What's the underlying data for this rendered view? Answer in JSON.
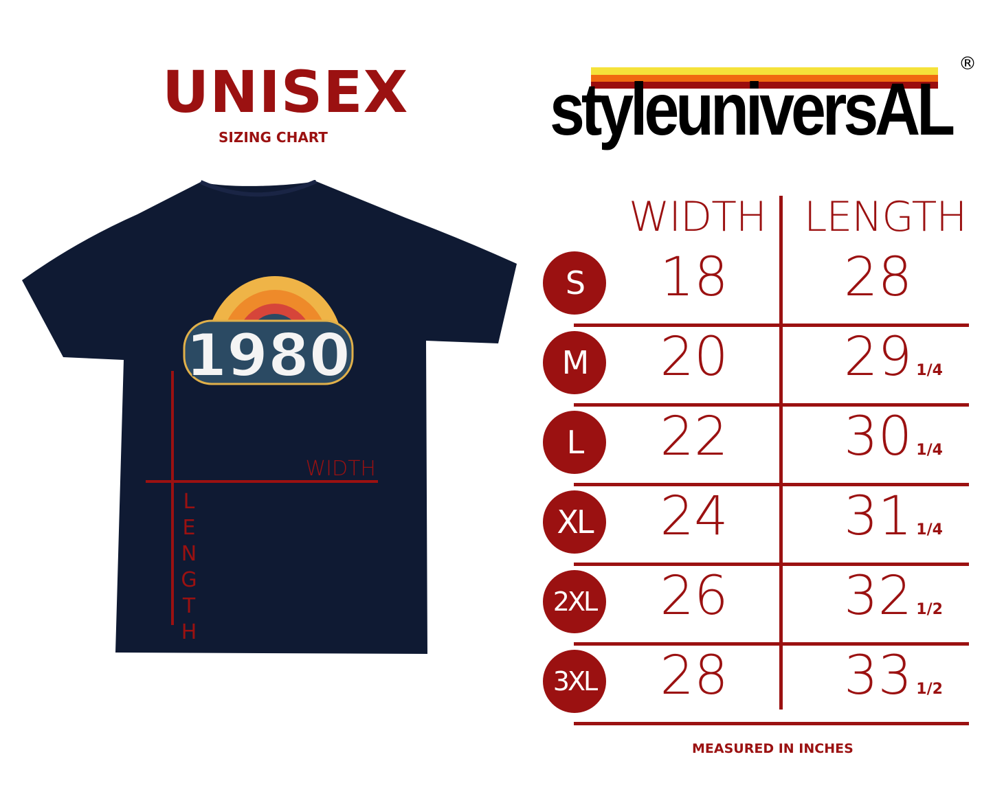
{
  "header": {
    "title": "UNISEX",
    "subtitle": "SIZING CHART"
  },
  "brand": {
    "logo_text": "styleuniversAL",
    "registered": "®"
  },
  "shirt": {
    "graphic_text": "1980",
    "width_label": "WIDTH",
    "length_label": "LENGTH",
    "color": "#0f1a33"
  },
  "table": {
    "columns": [
      "WIDTH",
      "LENGTH"
    ],
    "rows": [
      {
        "size": "S",
        "width": "18",
        "length": "28",
        "length_fraction": ""
      },
      {
        "size": "M",
        "width": "20",
        "length": "29",
        "length_fraction": "1/4"
      },
      {
        "size": "L",
        "width": "22",
        "length": "30",
        "length_fraction": "1/4"
      },
      {
        "size": "XL",
        "width": "24",
        "length": "31",
        "length_fraction": "1/4"
      },
      {
        "size": "2XL",
        "width": "26",
        "length": "32",
        "length_fraction": "1/2"
      },
      {
        "size": "3XL",
        "width": "28",
        "length": "33",
        "length_fraction": "1/2"
      }
    ]
  },
  "footer": {
    "note": "MEASURED IN INCHES"
  },
  "colors": {
    "accent": "#9b1111",
    "navy": "#0f1a33"
  }
}
